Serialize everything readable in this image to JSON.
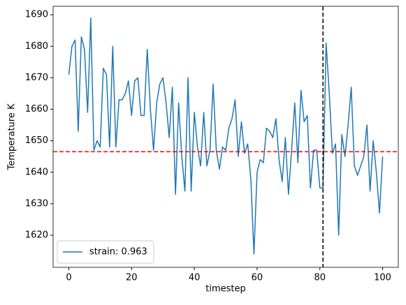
{
  "chart_data": {
    "type": "line",
    "xlabel": "timestep",
    "ylabel": "Temperature K",
    "x": [
      0,
      1,
      2,
      3,
      4,
      5,
      6,
      7,
      8,
      9,
      10,
      11,
      12,
      13,
      14,
      15,
      16,
      17,
      18,
      19,
      20,
      21,
      22,
      23,
      24,
      25,
      26,
      27,
      28,
      29,
      30,
      31,
      32,
      33,
      34,
      35,
      36,
      37,
      38,
      39,
      40,
      41,
      42,
      43,
      44,
      45,
      46,
      47,
      48,
      49,
      50,
      51,
      52,
      53,
      54,
      55,
      56,
      57,
      58,
      59,
      60,
      61,
      62,
      63,
      64,
      65,
      66,
      67,
      68,
      69,
      70,
      71,
      72,
      73,
      74,
      75,
      76,
      77,
      78,
      79,
      80,
      81,
      82,
      83,
      84,
      85,
      86,
      87,
      88,
      89,
      90,
      91,
      92,
      93,
      94,
      95,
      96,
      97,
      98,
      99,
      100
    ],
    "series": [
      {
        "name": "strain: 0.963",
        "color": "#1f77b4",
        "values": [
          1671,
          1680,
          1682,
          1653,
          1683,
          1679,
          1659,
          1689,
          1647,
          1650,
          1648,
          1673,
          1671,
          1648,
          1680,
          1648,
          1663,
          1663,
          1665,
          1669,
          1658,
          1669,
          1670,
          1658,
          1658,
          1679,
          1660,
          1647,
          1662,
          1668,
          1670,
          1662,
          1651,
          1667,
          1633,
          1662,
          1645,
          1634,
          1670,
          1634,
          1659,
          1648,
          1642,
          1659,
          1642,
          1647,
          1668,
          1647,
          1641,
          1648,
          1647,
          1654,
          1657,
          1663,
          1645,
          1656,
          1646,
          1649,
          1638,
          1614,
          1640,
          1644,
          1643,
          1654,
          1653,
          1651,
          1657,
          1644,
          1637,
          1651,
          1633,
          1647,
          1662,
          1643,
          1666,
          1656,
          1658,
          1635,
          1647,
          1647,
          1635,
          1635,
          1681,
          1665,
          1646,
          1649,
          1620,
          1652,
          1645,
          1655,
          1667,
          1642,
          1639,
          1642,
          1645,
          1655,
          1634,
          1650,
          1640,
          1627,
          1645
        ]
      }
    ],
    "hline": {
      "value": 1646.5,
      "color": "#ff0000"
    },
    "vline": {
      "value": 81,
      "color": "#000000"
    },
    "xlim": [
      -5,
      105
    ],
    "ylim": [
      1609.8,
      1692.7
    ],
    "xticks": [
      0,
      20,
      40,
      60,
      80,
      100
    ],
    "yticks": [
      1620,
      1630,
      1640,
      1650,
      1660,
      1670,
      1680,
      1690
    ],
    "legend": "lower left"
  }
}
